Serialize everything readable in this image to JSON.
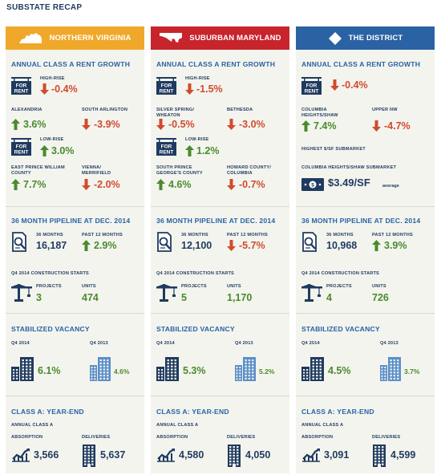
{
  "page_title": "SUBSTATE RECAP",
  "colors": {
    "virginia": "#f0a82a",
    "maryland": "#c8242c",
    "district": "#2a62a4",
    "green": "#4a8a2c",
    "red": "#d24a2e",
    "navy": "#1f3a5f",
    "section_title": "#2a62a4"
  },
  "columns": [
    {
      "name": "NORTHERN VIRGINIA",
      "icon": "virginia-map-icon",
      "rent": {
        "title": "ANNUAL CLASS A RENT GROWTH",
        "high_label": "HIGH-RISE",
        "high_value": "-0.4%",
        "high_dir": "down",
        "a_label": "ALEXANDRIA",
        "a_value": "3.6%",
        "a_dir": "up",
        "b_label": "SOUTH ARLINGTON",
        "b_value": "-3.9%",
        "b_dir": "down",
        "low_label": "LOW-RISE",
        "low_value": "3.0%",
        "low_dir": "up",
        "c_label": "EAST PRINCE WILLIAM COUNTY",
        "c_value": "7.7%",
        "c_dir": "up",
        "d_label": "VIENNA/ MERRIFIELD",
        "d_value": "-2.0%",
        "d_dir": "down"
      },
      "pipeline": {
        "title": "36 MONTH PIPELINE AT DEC. 2014",
        "m36_label": "36 MONTHS",
        "m36_value": "16,187",
        "p12_label": "PAST 12 MONTHS",
        "p12_value": "2.9%",
        "p12_dir": "up",
        "starts_label": "Q4 2014 CONSTRUCTION STARTS",
        "projects_label": "PROJECTS",
        "projects_value": "3",
        "units_label": "UNITS",
        "units_value": "474"
      },
      "vacancy": {
        "title": "STABILIZED VACANCY",
        "q1_label": "Q4 2014",
        "q1_value": "6.1%",
        "q2_label": "Q4 2013",
        "q2_value": "4.6%"
      },
      "yearend": {
        "title": "CLASS A: YEAR-END",
        "sub": "ANNUAL CLASS A",
        "abs_label": "ABSORPTION",
        "abs_value": "3,566",
        "del_label": "DELIVERIES",
        "del_value": "5,637"
      }
    },
    {
      "name": "SUBURBAN MARYLAND",
      "icon": "maryland-map-icon",
      "rent": {
        "title": "ANNUAL CLASS A RENT GROWTH",
        "high_label": "HIGH-RISE",
        "high_value": "-1.5%",
        "high_dir": "down",
        "a_label": "SILVER SPRING/ WHEATON",
        "a_value": "-0.5%",
        "a_dir": "down",
        "b_label": "BETHESDA",
        "b_value": "-3.0%",
        "b_dir": "down",
        "low_label": "LOW-RISE",
        "low_value": "1.2%",
        "low_dir": "up",
        "c_label": "SOUTH PRINCE GEORGE'S COUNTY",
        "c_value": "4.6%",
        "c_dir": "up",
        "d_label": "HOWARD COUNTY/ COLUMBIA",
        "d_value": "-0.7%",
        "d_dir": "down"
      },
      "pipeline": {
        "title": "36 MONTH PIPELINE AT DEC. 2014",
        "m36_label": "36 MONTHS",
        "m36_value": "12,100",
        "p12_label": "PAST 12 MONTHS",
        "p12_value": "-5.7%",
        "p12_dir": "down",
        "starts_label": "Q4 2014 CONSTRUCTION STARTS",
        "projects_label": "PROJECTS",
        "projects_value": "5",
        "units_label": "UNITS",
        "units_value": "1,170"
      },
      "vacancy": {
        "title": "STABILIZED VACANCY",
        "q1_label": "Q4 2014",
        "q1_value": "5.3%",
        "q2_label": "Q4 2013",
        "q2_value": "5.2%"
      },
      "yearend": {
        "title": "CLASS A: YEAR-END",
        "sub": "ANNUAL CLASS A",
        "abs_label": "ABSORPTION",
        "abs_value": "4,580",
        "del_label": "DELIVERIES",
        "del_value": "4,050"
      }
    },
    {
      "name": "THE DISTRICT",
      "icon": "district-map-icon",
      "rent": {
        "title": "ANNUAL CLASS A RENT GROWTH",
        "high_value": "-0.4%",
        "high_dir": "down",
        "a_label": "COLUMBIA HEIGHTS/SHAW",
        "a_value": "7.4%",
        "a_dir": "up",
        "b_label": "UPPER NW",
        "b_value": "-4.7%",
        "b_dir": "down",
        "highest_label": "HIGHEST $/SF SUBMARKET",
        "sub_label": "COLUMBIA HEIGHTS/SHAW SUBMARKET",
        "sf_value": "$3.49/SF",
        "sf_avg": "average"
      },
      "pipeline": {
        "title": "36 MONTH PIPELINE AT DEC. 2014",
        "m36_label": "36 MONTHS",
        "m36_value": "10,968",
        "p12_label": "PAST 12 MONTHS",
        "p12_value": "3.9%",
        "p12_dir": "up",
        "starts_label": "Q4 2014 CONSTRUCTION STARTS",
        "projects_label": "PROJECTS",
        "projects_value": "4",
        "units_label": "UNITS",
        "units_value": "726"
      },
      "vacancy": {
        "title": "STABILIZED VACANCY",
        "q1_label": "Q4 2014",
        "q1_value": "4.5%",
        "q2_label": "Q4 2013",
        "q2_value": "3.7%"
      },
      "yearend": {
        "title": "CLASS A: YEAR-END",
        "sub": "ANNUAL CLASS A",
        "abs_label": "ABSORPTION",
        "abs_value": "3,091",
        "del_label": "DELIVERIES",
        "del_value": "4,599"
      }
    }
  ],
  "for_rent_sign": "FOR RENT"
}
